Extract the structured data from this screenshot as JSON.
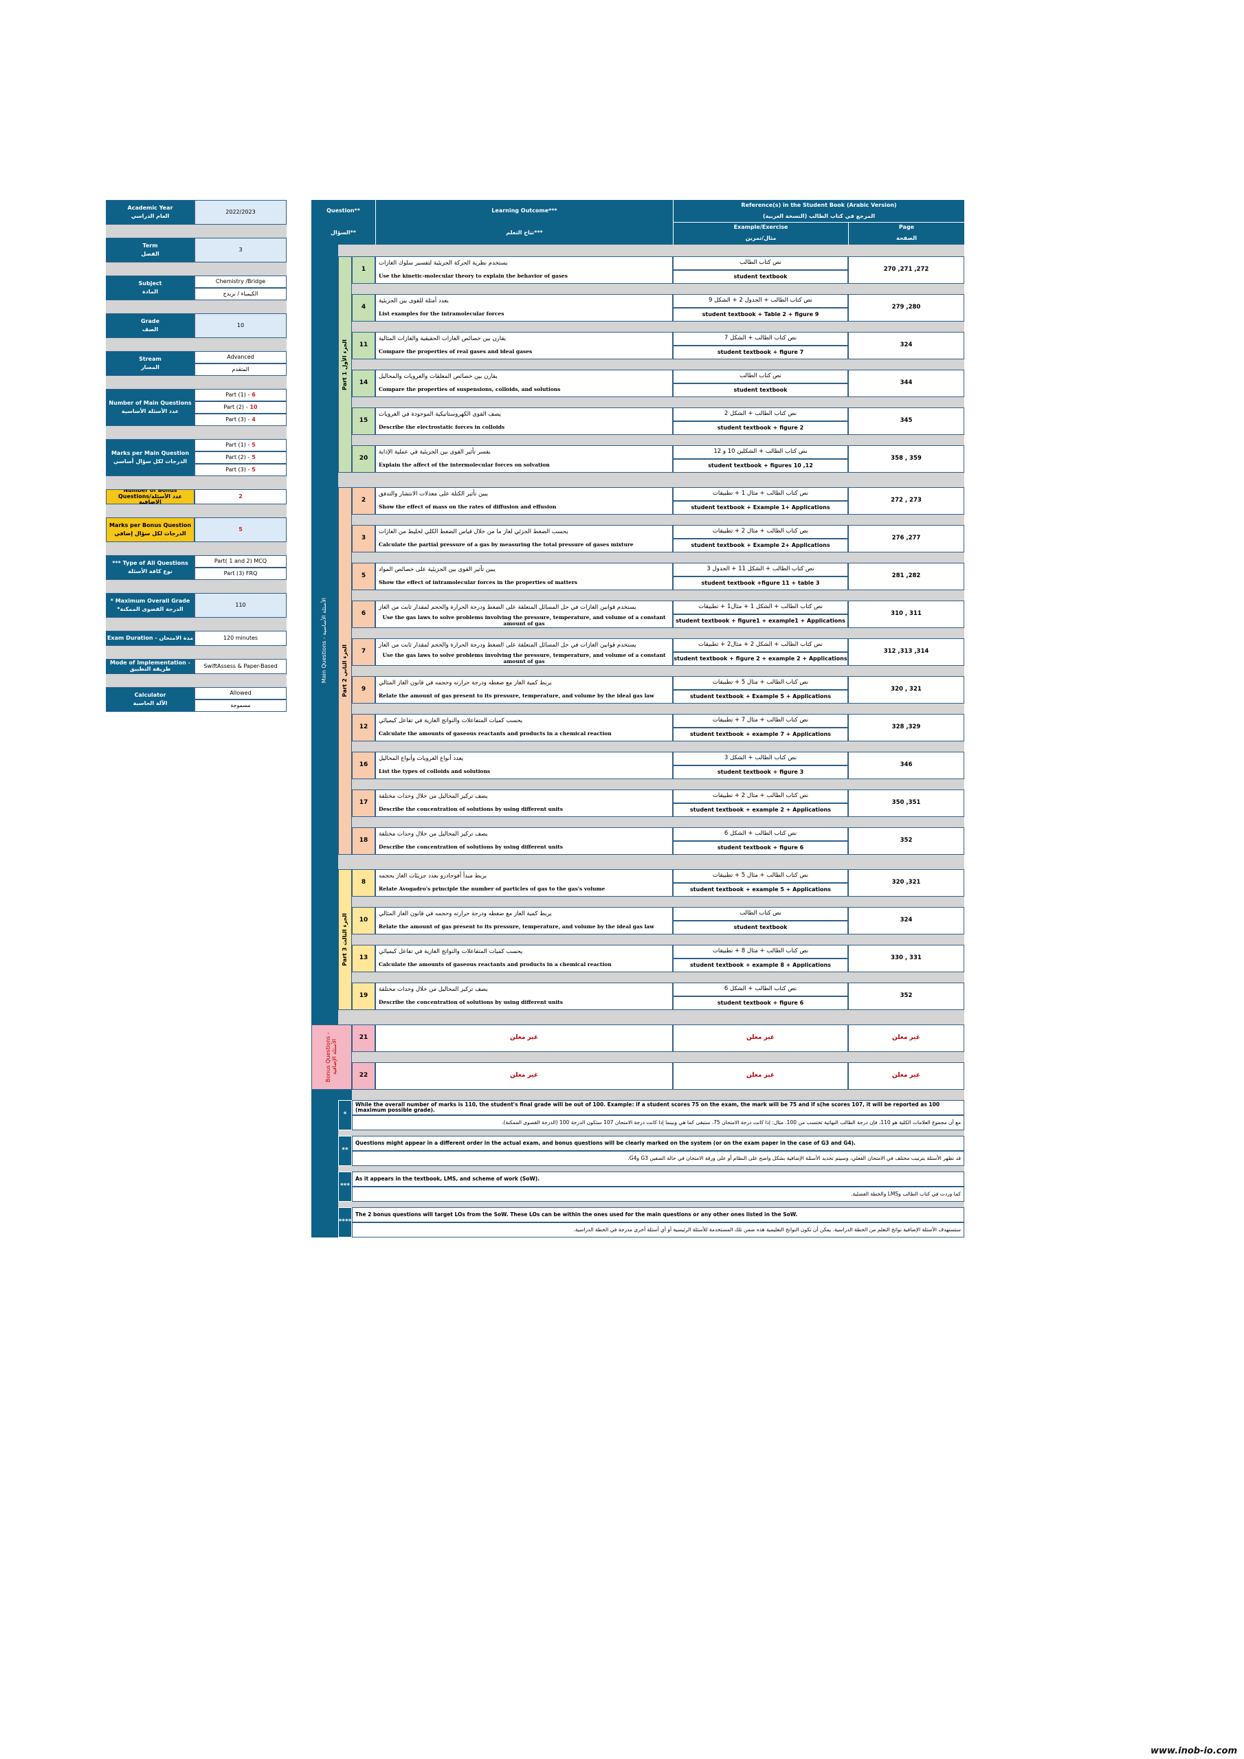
{
  "info_panel": {
    "items": [
      {
        "label": "Academic Year",
        "label_ar": "العام الدراسي",
        "values": [
          {
            "text": "2022/2023"
          }
        ]
      },
      {
        "label": "Term",
        "label_ar": "الفصل",
        "values": [
          {
            "text": "3"
          }
        ]
      },
      {
        "label": "Subject",
        "label_ar": "المادة",
        "values": [
          {
            "text": "Chemistry /Bridge"
          },
          {
            "text": "الكيمياء / بريدج"
          }
        ]
      },
      {
        "label": "Grade",
        "label_ar": "الصف",
        "values": [
          {
            "text": "10"
          }
        ]
      },
      {
        "label": "Stream",
        "label_ar": "المسار",
        "values": [
          {
            "text": "Advanced"
          },
          {
            "text": "المتقدم"
          }
        ]
      },
      {
        "label": "Number of Main Questions",
        "label_ar": "عدد الأسئلة الأساسية",
        "values": [
          {
            "text": "Part (1) -",
            "number": "6"
          },
          {
            "text": "Part (2) -",
            "number": "10"
          },
          {
            "text": "Part (3) -",
            "number": "4"
          }
        ]
      },
      {
        "label": "Marks per Main Question",
        "label_ar": "الدرجات لكل سؤال أساسي",
        "values": [
          {
            "text": "Part (1) -",
            "number": "5"
          },
          {
            "text": "Part (2) -",
            "number": "5"
          },
          {
            "text": "Part (3) -",
            "number": "5"
          }
        ]
      },
      {
        "label": "Number of Bonus Questions/عدد الأسئلة الإضافية",
        "values": [
          {
            "number": "2"
          }
        ]
      },
      {
        "label": "Marks per Bonus Question",
        "label_ar": "الدرجات لكل سؤال إضافي",
        "values": [
          {
            "number": "5"
          }
        ]
      },
      {
        "label": "*** Type of All Questions",
        "label_ar": "نوع كافة الأسئلة",
        "values": [
          {
            "text": "Part( 1 and 2) MCQ"
          },
          {
            "text": "Part (3) FRQ"
          }
        ]
      },
      {
        "label": "* Maximum Overall Grade",
        "label_ar": "*الدرجة القصوى الممكنة",
        "values": [
          {
            "text": "110"
          }
        ]
      },
      {
        "label": "Exam Duration - مدة الامتحان",
        "values": [
          {
            "text": "120 minutes"
          }
        ]
      },
      {
        "label": "Mode of Implementation - طريقة التطبيق",
        "values": [
          {
            "text": "SwiftAssess & Paper-Based"
          }
        ]
      },
      {
        "label": "Calculator",
        "label_ar": "الآلة الحاسبة",
        "values": [
          {
            "text": "Allowed"
          },
          {
            "text": "مسموحة"
          }
        ]
      }
    ]
  },
  "main_table": {
    "header": {
      "question": "Question**",
      "question_ar": "السؤال**",
      "outcome": "Learning Outcome***",
      "outcome_ar": "نتاج التعلم***",
      "reference": "Reference(s) in the Student Book (Arabic Version)",
      "reference_ar": "المرجع في كتاب الطالب (النسخة العربية)",
      "example": "Example/Exercise",
      "example_ar": "مثال/تمرين",
      "page": "Page",
      "page_ar": "الصفحة"
    },
    "main_label": "Main Questions - الأسئلة الأساسية",
    "parts": [
      {
        "label": "Part 1 الجزء الأول",
        "questions": [
          {
            "number": "1",
            "outcome_ar": "يستخدم نظرية الحركة الجزيئية لتفسير سلوك الغازات",
            "outcome_en": "Use the kinetic-molecular theory to explain the behavior of gases",
            "ref_ar": "نص كتاب الطالب",
            "ref_en": "student textbook",
            "page": "270 ,271 ,272"
          },
          {
            "number": "4",
            "outcome_ar": "يعدد أمثلة للقوى بين الجزيئية",
            "outcome_en": "List examples for the intramolecular forces",
            "ref_ar": "نص كتاب الطالب + الجدول 2 + الشكل 9",
            "ref_en": "student textbook + Table 2 + figure 9",
            "page": "279 ,280"
          },
          {
            "number": "11",
            "outcome_ar": "يقارن بين خصائص الغازات الحقيقية والغازات المثالية",
            "outcome_en": "Compare the properties of real gases and ideal gases",
            "ref_ar": "نص كتاب الطالب + الشكل 7",
            "ref_en": "student textbook + figure 7",
            "page": "324"
          },
          {
            "number": "14",
            "outcome_ar": "يقارن بين خصائص المعلقات والغرويات والمحاليل",
            "outcome_en": "Compare the properties of suspensions, colloids, and solutions",
            "ref_ar": "نص كتاب الطالب",
            "ref_en": "student textbook",
            "page": "344"
          },
          {
            "number": "15",
            "outcome_ar": "يصف القوى الكهروستاتيكية الموجودة في الغرويات",
            "outcome_en": "Describe the electrostatic forces in colloids",
            "ref_ar": "نص كتاب الطالب + الشكل 2",
            "ref_en": "student textbook + figure 2",
            "page": "345"
          },
          {
            "number": "20",
            "outcome_ar": "يفسر تأثير القوى بين الجزيئية في عملية الإذابة",
            "outcome_en": "Explain the affect of the intermolecular forces on solvation",
            "ref_ar": "نص كتاب الطالب + الشكلين 10 و 12",
            "ref_en": "student textbook + figures 10 ,12",
            "page": "358 , 359"
          }
        ]
      },
      {
        "label": "Part 2 الجزء الثاني",
        "questions": [
          {
            "number": "2",
            "outcome_ar": "يبين تأثير الكتلة على معدلات الانتشار والتدفق",
            "outcome_en": "Show the effect of mass on the rates of diffusion and effusion",
            "ref_ar": "نص كتاب الطالب + مثال 1 + تطبيقات",
            "ref_en": "student textbook + Example 1+ Applications",
            "page": "272 , 273"
          },
          {
            "number": "3",
            "outcome_ar": "يحسب الضغط الجزئي لغاز ما من خلال قياس الضغط الكلي لخليط من الغازات",
            "outcome_en": "Calculate the partial pressure of a gas by measuring the total pressure of gases mixture",
            "ref_ar": "نص كتاب الطالب + مثال 2 + تطبيقات",
            "ref_en": "student textbook + Example 2+ Applications",
            "page": "276 ,277"
          },
          {
            "number": "5",
            "outcome_ar": "يبين تأثير القوى بين الجزيئية على خصائص المواد",
            "outcome_en": "Show the effect of intramolecular forces in the properties of matters",
            "ref_ar": "نص كتاب الطالب + الشكل 11 + الجدول 3",
            "ref_en": "student textbook +figure 11 + table 3",
            "page": "281 ,282"
          },
          {
            "number": "6",
            "outcome_ar": "يستخدم قوانين الغازات في حل المسائل المتعلقة على الضغط ودرجة الحرارة والحجم لمقدار ثابت من الغاز",
            "outcome_en": "Use the gas laws to solve problems involving the pressure, temperature, and volume of a constant amount of gas",
            "ref_ar": "نص كتاب الطالب + الشكل 1 + مثال1 + تطبيقات",
            "ref_en": "student textbook + figure1 + example1 + Applications",
            "page": "310 , 311"
          },
          {
            "number": "7",
            "outcome_ar": "يستخدم قوانين الغازات في حل المسائل المتعلقة على الضغط ودرجة الحرارة والحجم لمقدار ثابت من الغاز",
            "outcome_en": "Use the gas laws to solve problems involving the pressure, temperature, and volume of a constant amount of gas",
            "ref_ar": "نص كتاب الطالب + الشكل 2 + مثال2 + تطبيقات",
            "ref_en": "student textbook + figure 2 + example 2 + Applications",
            "page": "312 ,313 ,314"
          },
          {
            "number": "9",
            "outcome_ar": "يربط كمية الغاز مع ضغطه ودرجة حرارته وحجمه في قانون الغاز المثالي",
            "outcome_en": "Relate the amount of gas present to its pressure, temperature, and volume by the ideal gas law",
            "ref_ar": "نص كتاب الطالب + مثال 5 + تطبيقات",
            "ref_en": "student textbook + Example 5 + Applications",
            "page": "320 , 321"
          },
          {
            "number": "12",
            "outcome_ar": "يحسب كميات المتفاعلات والنواتج الغازية في تفاعل كيميائي",
            "outcome_en": "Calculate the amounts of gaseous reactants and products in a chemical reaction",
            "ref_ar": "نص كتاب الطالب + مثال 7 + تطبيقات",
            "ref_en": "student textbook + example 7 + Applications",
            "page": "328 ,329"
          },
          {
            "number": "16",
            "outcome_ar": "يعدد أنواع الغرويات وأنواع المحاليل",
            "outcome_en": "List the types of colloids and solutions",
            "ref_ar": "نص كتاب الطالب + الشكل 3",
            "ref_en": "student textbook + figure 3",
            "page": "346"
          },
          {
            "number": "17",
            "outcome_ar": "يصف تركيز المحاليل من خلال وحدات مختلفة",
            "outcome_en": "Describe the concentration of solutions by using different units",
            "ref_ar": "نص كتاب الطالب + مثال 2 + تطبيقات",
            "ref_en": "student textbook + example 2 + Applications",
            "page": "350 ,351"
          },
          {
            "number": "18",
            "outcome_ar": "يصف تركيز المحاليل من خلال وحدات مختلفة",
            "outcome_en": "Describe the concentration of solutions by using different units",
            "ref_ar": "نص كتاب الطالب + الشكل 6",
            "ref_en": "student textbook + figure 6",
            "page": "352"
          }
        ]
      },
      {
        "label": "Part 3 الجزء الثالث",
        "questions": [
          {
            "number": "8",
            "outcome_ar": "يربط مبدأ أفوجادرو بعدد جزيئات الغاز بحجمه",
            "outcome_en": "Relate Avogadro's principle the number of particles of gas to the gas's volume",
            "ref_ar": "نص كتاب الطالب + مثال 5 + تطبيقات",
            "ref_en": "student textbook + example 5 + Applications",
            "page": "320 ,321"
          },
          {
            "number": "10",
            "outcome_ar": "يربط كمية الغاز مع ضغطه ودرجة حرارته وحجمه في قانون الغاز المثالي",
            "outcome_en": "Relate the amount of gas present to its pressure, temperature, and volume by the ideal gas law",
            "ref_ar": "نص كتاب الطالب",
            "ref_en": "student textbook",
            "page": "324"
          },
          {
            "number": "13",
            "outcome_ar": "يحسب كميات المتفاعلات والنواتج الغازية في تفاعل كيميائي",
            "outcome_en": "Calculate the amounts of gaseous reactants and products in a chemical reaction",
            "ref_ar": "نص كتاب الطالب + مثال 8 + تطبيقات",
            "ref_en": "student textbook + example 8 + Applications",
            "page": "330 , 331"
          },
          {
            "number": "19",
            "outcome_ar": "يصف تركيز المحاليل من خلال وحدات مختلفة",
            "outcome_en": "Describe the concentration of solutions by using different units",
            "ref_ar": "نص كتاب الطالب + الشكل 6",
            "ref_en": "student textbook + figure 6",
            "page": "352"
          }
        ]
      }
    ],
    "bonus": {
      "label": "Bonus Questions - الأسئلة الإضافية",
      "questions": [
        {
          "number": "21",
          "outcome": "غير معلن",
          "reference": "غير معلن",
          "page": "غير معلن"
        },
        {
          "number": "22",
          "outcome": "غير معلن",
          "reference": "غير معلن",
          "page": "غير معلن"
        }
      ]
    }
  },
  "notes": [
    {
      "marker": "*",
      "text_en": "While the overall number of marks is 110, the student's final grade will be out of 100. Example: if a student scores 75 on the exam, the mark will be 75 and if s(he scores 107, it will be reported as 100 (maximum possible grade).",
      "text_ar": "مع أن مجموع العلامات الكلية هو 110، فإن درجة الطالب النهائية تحتسب من 100. مثال: إذا كانت درجة الامتحان 75، ستبقى كما هي وبينما إذا كانت درجة الامتحان 107 ستكون الدرجة 100 (الدرجة القصوى الممكنة)."
    },
    {
      "marker": "**",
      "text_en": "Questions might appear in a different order in the actual exam, and bonus questions will be clearly marked on the system (or on the exam paper in the case of G3 and G4).",
      "text_ar": "قد تظهر الأسئلة بترتيب مختلف في الامتحان الفعلي، وسيتم تحديد الأسئلة الإضافية بشكل واضح على النظام أو على ورقة الامتحان في حالة الصفين G3 وG4."
    },
    {
      "marker": "***",
      "text_en": "As it appears in the textbook, LMS, and scheme of work (SoW).",
      "text_ar": "كما وردت في كتاب الطالب وLMS والخطة الفصلية."
    },
    {
      "marker": "****",
      "text_en": "The 2 bonus questions will target LOs from the SoW. These LOs can be within the ones used for the main questions or any other ones listed in the SoW.",
      "text_ar": "ستستهدف الأسئلة الإضافية نواتج التعلم من الخطة الدراسية. يمكن أن تكون النواتج التعليمية هذه ضمن تلك المستخدمة للأسئلة الرئيسية أو أي أسئلة أخرى مدرجة في الخطة الدراسية."
    }
  ],
  "watermark": "www.inob-io.com"
}
